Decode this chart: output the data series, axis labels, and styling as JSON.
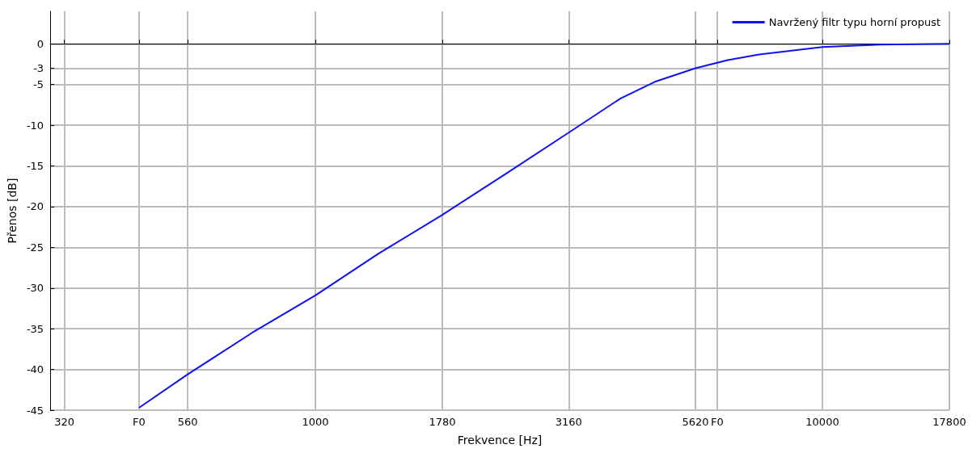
{
  "chart_data": {
    "type": "line",
    "xlabel": "Frekvence [Hz]",
    "ylabel": "Přenos [dB]",
    "log": "x",
    "series": [
      {
        "name": "Navržený filtr typu horní propust",
        "color": "#1010f0",
        "x": [
          449,
          560,
          750,
          1000,
          1330,
          1780,
          2370,
          3160,
          4000,
          4700,
          5620,
          6500,
          7500,
          10000,
          13000,
          17800
        ],
        "values": [
          -44.7,
          -40.6,
          -35.5,
          -30.9,
          -25.8,
          -21.0,
          -16.0,
          -10.9,
          -6.7,
          -4.6,
          -3.0,
          -2.0,
          -1.3,
          -0.4,
          -0.1,
          0
        ]
      }
    ],
    "xlim": [
      300,
      17800
    ],
    "xticks": [
      320,
      {
        "value": 449,
        "label": "F0"
      },
      560,
      1000,
      1780,
      3160,
      5620,
      {
        "value": 6200,
        "label": "F0"
      },
      10000,
      17800
    ],
    "ylim": [
      -45,
      4
    ],
    "yticks": [
      0,
      -3,
      -5,
      -10,
      -15,
      -20,
      -25,
      -30,
      -35,
      -40,
      -45
    ],
    "grid": true,
    "legend": "top right",
    "marker": "none",
    "line_style": "solid"
  }
}
